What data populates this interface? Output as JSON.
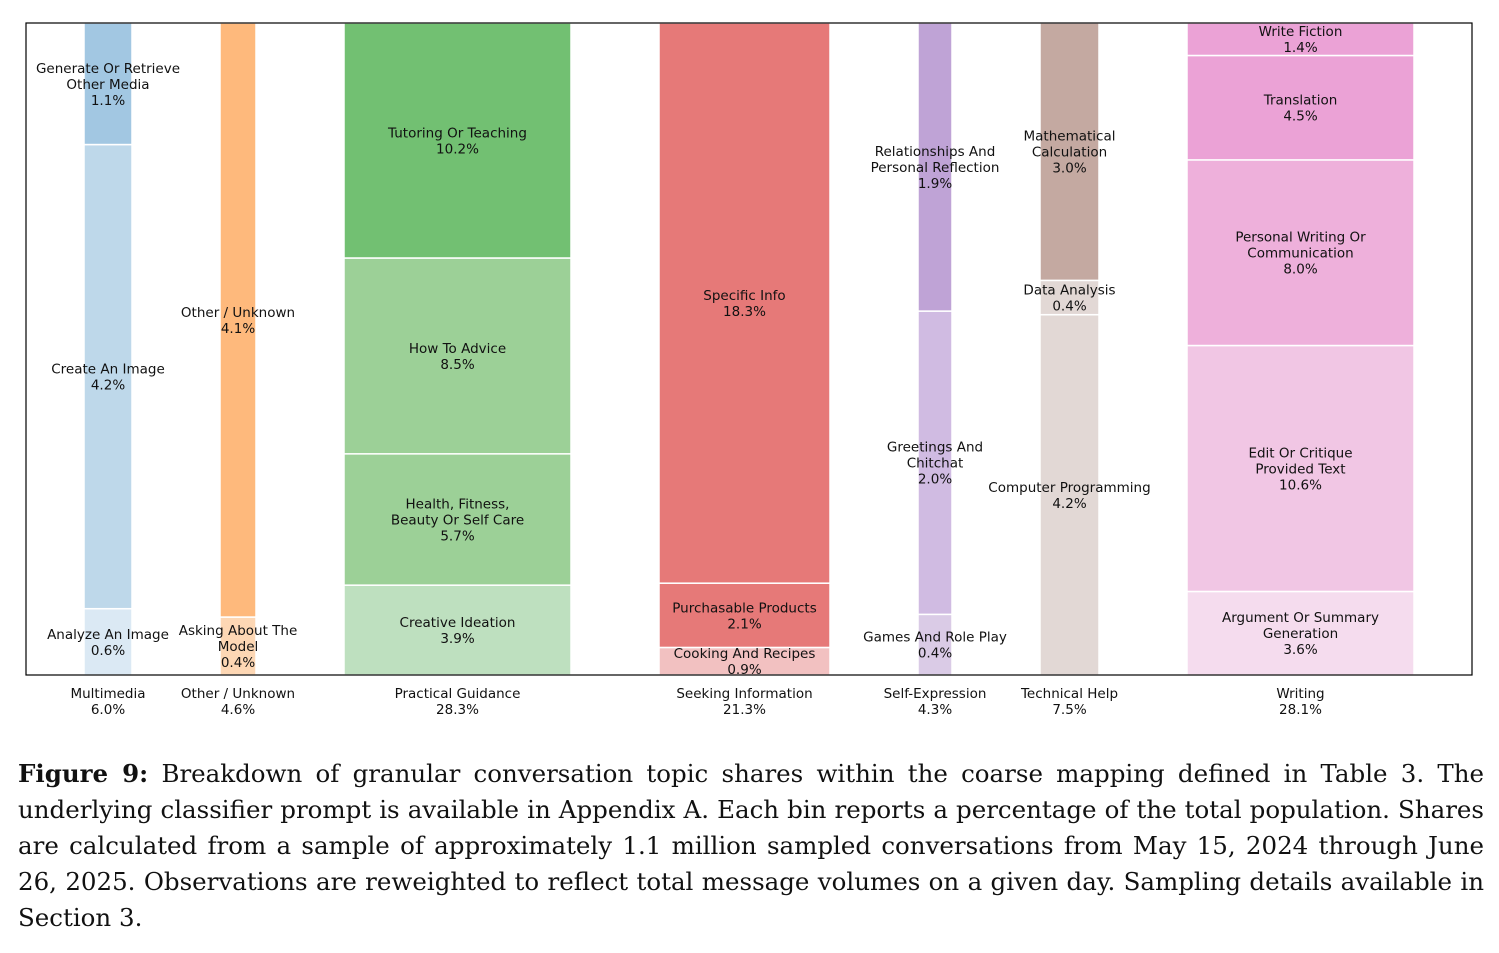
{
  "chart_data": {
    "type": "bar",
    "subtype": "marimekko",
    "ylim": [
      0,
      1
    ],
    "grid": false,
    "groups": [
      {
        "name": "Multimedia",
        "total": "6.0%",
        "total_value": 6.0,
        "segments": [
          {
            "label": "Analyze An Image",
            "pct": "0.6%",
            "value": 0.6,
            "color": "#dbe9f4"
          },
          {
            "label": "Create An Image",
            "pct": "4.2%",
            "value": 4.2,
            "color": "#bed8ea"
          },
          {
            "label": "Generate Or Retrieve\nOther Media",
            "pct": "1.1%",
            "value": 1.1,
            "color": "#a2c7e2"
          }
        ]
      },
      {
        "name": "Other / Unknown",
        "total": "4.6%",
        "total_value": 4.6,
        "segments": [
          {
            "label": "Asking About The\nModel",
            "pct": "0.4%",
            "value": 0.4,
            "color": "#fdd7b4"
          },
          {
            "label": "Other / Unknown",
            "pct": "4.1%",
            "value": 4.1,
            "color": "#feb97c"
          }
        ]
      },
      {
        "name": "Practical Guidance",
        "total": "28.3%",
        "total_value": 28.3,
        "segments": [
          {
            "label": "Creative Ideation",
            "pct": "3.9%",
            "value": 3.9,
            "color": "#bee0bf"
          },
          {
            "label": "Health, Fitness,\nBeauty Or Self Care",
            "pct": "5.7%",
            "value": 5.7,
            "color": "#9cd097"
          },
          {
            "label": "How To Advice",
            "pct": "8.5%",
            "value": 8.5,
            "color": "#9cd097"
          },
          {
            "label": "Tutoring Or Teaching",
            "pct": "10.2%",
            "value": 10.2,
            "color": "#72c072"
          }
        ]
      },
      {
        "name": "Seeking Information",
        "total": "21.3%",
        "total_value": 21.3,
        "segments": [
          {
            "label": "Cooking And Recipes",
            "pct": "0.9%",
            "value": 0.9,
            "color": "#f2c1c1"
          },
          {
            "label": "Purchasable Products",
            "pct": "2.1%",
            "value": 2.1,
            "color": "#e67978"
          },
          {
            "label": "Specific Info",
            "pct": "18.3%",
            "value": 18.3,
            "color": "#e67978"
          }
        ]
      },
      {
        "name": "Self-Expression",
        "total": "4.3%",
        "total_value": 4.3,
        "segments": [
          {
            "label": "Games And Role Play",
            "pct": "0.4%",
            "value": 0.4,
            "color": "#dacbe6"
          },
          {
            "label": "Greetings And\nChitchat",
            "pct": "2.0%",
            "value": 2.0,
            "color": "#d0bbe2"
          },
          {
            "label": "Relationships And\nPersonal Reflection",
            "pct": "1.9%",
            "value": 1.9,
            "color": "#bfa3d6"
          }
        ]
      },
      {
        "name": "Technical Help",
        "total": "7.5%",
        "total_value": 7.5,
        "segments": [
          {
            "label": "Computer Programming",
            "pct": "4.2%",
            "value": 4.2,
            "color": "#e2d8d5"
          },
          {
            "label": "Data Analysis",
            "pct": "0.4%",
            "value": 0.4,
            "color": "#e2d8d5"
          },
          {
            "label": "Mathematical\nCalculation",
            "pct": "3.0%",
            "value": 3.0,
            "color": "#c4a9a1"
          }
        ]
      },
      {
        "name": "Writing",
        "total": "28.1%",
        "total_value": 28.1,
        "segments": [
          {
            "label": "Argument Or Summary\nGeneration",
            "pct": "3.6%",
            "value": 3.6,
            "color": "#f5dcee"
          },
          {
            "label": "Edit Or Critique\nProvided Text",
            "pct": "10.6%",
            "value": 10.6,
            "color": "#f1c6e4"
          },
          {
            "label": "Personal Writing Or\nCommunication",
            "pct": "8.0%",
            "value": 8.0,
            "color": "#eeb0db"
          },
          {
            "label": "Translation",
            "pct": "4.5%",
            "value": 4.5,
            "color": "#eba2d6"
          },
          {
            "label": "Write Fiction",
            "pct": "1.4%",
            "value": 1.4,
            "color": "#eba2d6"
          }
        ]
      }
    ]
  },
  "caption": {
    "label": "Figure 9:",
    "text": "Breakdown of granular conversation topic shares within the coarse mapping defined in Table 3. The underlying classifier prompt is available in Appendix A. Each bin reports a percentage of the total population. Shares are calculated from a sample of approximately 1.1 million sampled conversations from May 15, 2024 through June 26, 2025. Observations are reweighted to reflect total message volumes on a given day. Sampling details available in Section 3."
  }
}
